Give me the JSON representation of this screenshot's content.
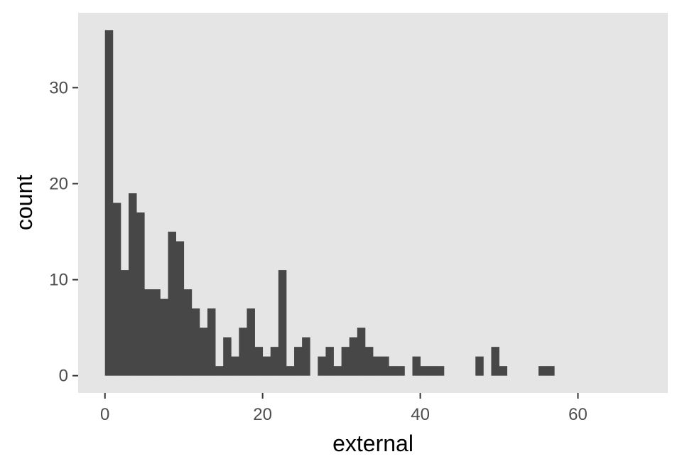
{
  "chart_data": {
    "type": "bar",
    "xlabel": "external",
    "ylabel": "count",
    "bin_width": 1,
    "x_start": 0,
    "xlim": [
      -3.4,
      71.4
    ],
    "ylim": [
      -1.8,
      37.8
    ],
    "x_ticks": [
      0,
      20,
      40,
      60
    ],
    "y_ticks": [
      0,
      10,
      20,
      30
    ],
    "grid": false,
    "colors": {
      "panel": "#e5e5e5",
      "bar": "#474747",
      "tick": "#333333"
    },
    "values": [
      36,
      18,
      11,
      19,
      17,
      9,
      9,
      8,
      15,
      14,
      9,
      7,
      5,
      7,
      1,
      4,
      2,
      5,
      7,
      3,
      2,
      3,
      11,
      1,
      3,
      4,
      0,
      2,
      3,
      1,
      3,
      4,
      5,
      3,
      2,
      2,
      1,
      1,
      0,
      2,
      1,
      1,
      1,
      0,
      0,
      0,
      0,
      2,
      0,
      3,
      1,
      0,
      0,
      0,
      0,
      1,
      1,
      0,
      0,
      0,
      0,
      0,
      0,
      0,
      0,
      0,
      0,
      0
    ]
  }
}
